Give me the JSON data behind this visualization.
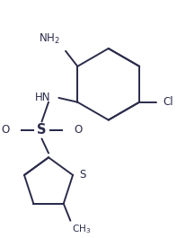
{
  "bg_color": "#ffffff",
  "line_color": "#2b2b4b",
  "line_width": 1.4,
  "dbo": 0.018,
  "font_size": 8.5,
  "figsize": [
    1.97,
    2.65
  ],
  "dpi": 100,
  "xlim": [
    0,
    197
  ],
  "ylim": [
    0,
    265
  ]
}
